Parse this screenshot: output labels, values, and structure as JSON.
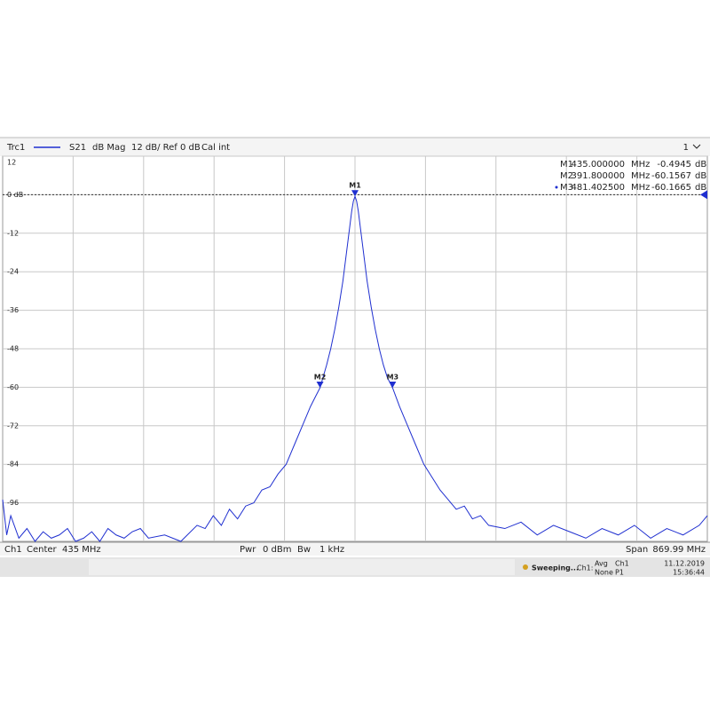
{
  "header": {
    "trace": "Trc1",
    "param": "S21",
    "format": "dB Mag",
    "scale": "12 dB/ Ref 0 dB",
    "cal": "Cal int",
    "window": "1"
  },
  "chart_data": {
    "type": "line",
    "x": [
      0,
      5,
      10,
      20,
      30,
      40,
      50,
      60,
      70,
      80,
      90,
      100,
      110,
      120,
      130,
      140,
      150,
      160,
      170,
      180,
      200,
      220,
      240,
      250,
      260,
      270,
      280,
      290,
      300,
      310,
      320,
      330,
      340,
      350,
      360,
      370,
      380,
      386,
      391.8,
      400,
      405,
      410,
      415,
      420,
      425,
      428,
      431,
      433,
      435,
      437,
      439,
      442,
      445,
      450,
      455,
      460,
      465,
      470,
      475,
      481.4,
      490,
      500,
      510,
      520,
      530,
      540,
      550,
      560,
      570,
      580,
      590,
      600,
      620,
      640,
      660,
      680,
      700,
      720,
      740,
      760,
      780,
      800,
      820,
      840,
      860,
      870
    ],
    "series": [
      {
        "name": "Trc1",
        "color": "#1f2fd0",
        "values": [
          -95,
          -106,
          -100,
          -107,
          -104,
          -108,
          -105,
          -107,
          -106,
          -104,
          -108,
          -107,
          -105,
          -108,
          -104,
          -106,
          -107,
          -105,
          -104,
          -107,
          -106,
          -108,
          -103,
          -104,
          -100,
          -103,
          -98,
          -101,
          -97,
          -96,
          -92,
          -91,
          -87,
          -84,
          -78,
          -72,
          -66,
          -63,
          -60.16,
          -53,
          -48,
          -42,
          -35,
          -27,
          -17,
          -11,
          -5,
          -2,
          -0.49,
          -2,
          -5,
          -11,
          -17,
          -27,
          -35,
          -42,
          -48,
          -53,
          -57,
          -60.17,
          -66,
          -72,
          -78,
          -84,
          -88,
          -92,
          -95,
          -98,
          -97,
          -101,
          -100,
          -103,
          -104,
          -102,
          -106,
          -103,
          -105,
          -107,
          -104,
          -106,
          -103,
          -107,
          -104,
          -106,
          -103,
          -100
        ]
      }
    ],
    "xlim": [
      0.005,
      869.995
    ],
    "xticks": [
      87,
      174,
      261,
      348,
      435,
      522,
      609,
      696,
      783
    ],
    "ylim": [
      -108,
      12
    ],
    "yticks": [
      12,
      {
        "value": 0,
        "label": "0 dB"
      },
      -12,
      -24,
      -36,
      -48,
      -60,
      -72,
      -84,
      -96
    ],
    "reference_level": 0,
    "grid": true,
    "markers": {
      "names": [
        "M1",
        "M2",
        "M3"
      ],
      "x": [
        435,
        391.8,
        481.4025
      ],
      "x_labels": [
        "435.000000",
        "391.800000",
        "481.402500"
      ],
      "x_unit": "MHz",
      "values": [
        -0.4945,
        -60.1567,
        -60.1665
      ],
      "unit": "dB"
    }
  },
  "footer": {
    "channel": "Ch1",
    "center_label": "Center",
    "center": "435 MHz",
    "pwr_label": "Pwr",
    "pwr": "0 dBm",
    "bw_label": "Bw",
    "bw": "1 kHz",
    "span_label": "Span",
    "span": "869.99 MHz"
  },
  "status": {
    "state": "Sweeping...",
    "channel": "Ch1:",
    "avg": "Avg",
    "avg_ch": "Ch1",
    "none": "None",
    "port": "P1",
    "date": "11.12.2019",
    "time": "15:36:44"
  }
}
